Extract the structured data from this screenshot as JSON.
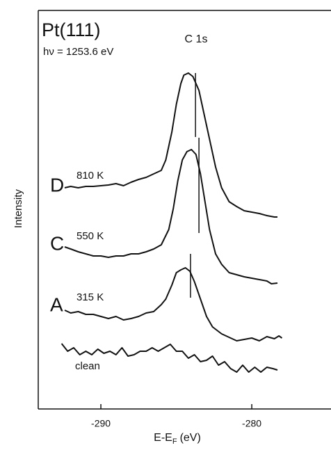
{
  "chart_data": {
    "type": "line",
    "title": "Pt(111)",
    "subtitle": "hν = 1253.6 eV",
    "annotation": "C 1s",
    "ylabel": "Intensity",
    "xlabel": {
      "main": "E-E",
      "sub": "F",
      "unit": "(eV)"
    },
    "xlim": [
      -294.15,
      -274.75
    ],
    "xticks": [
      -290,
      -280
    ],
    "ylim": [
      0,
      573
    ],
    "color": "#111111",
    "series": [
      {
        "name": "810 K",
        "letter": "D",
        "x": [
          -292.4,
          -292,
          -291.5,
          -291,
          -290.5,
          -290,
          -289.5,
          -289,
          -288.5,
          -288,
          -287.5,
          -287,
          -286.5,
          -286,
          -285.7,
          -285.3,
          -285,
          -284.7,
          -284.5,
          -284.2,
          -283.9,
          -283.5,
          -283.2,
          -282.8,
          -282.4,
          -282,
          -281.5,
          -281,
          -280.5,
          -280,
          -279.5,
          -279,
          -278.5,
          -278.3
        ],
        "values": [
          318,
          320,
          318,
          320,
          320,
          321,
          322,
          324,
          321,
          326,
          330,
          333,
          338,
          343,
          358,
          398,
          438,
          468,
          480,
          483,
          478,
          458,
          428,
          388,
          348,
          318,
          298,
          291,
          285,
          283,
          281,
          278,
          276,
          276
        ],
        "peak_x": -283.73,
        "peak_y": [
          483,
          391
        ]
      },
      {
        "name": "550 K",
        "letter": "C",
        "x": [
          -292.4,
          -292,
          -291.5,
          -291,
          -290.5,
          -290,
          -289.5,
          -289,
          -288.5,
          -288,
          -287.5,
          -287,
          -286.5,
          -286,
          -285.5,
          -285.2,
          -284.9,
          -284.6,
          -284.3,
          -284,
          -283.7,
          -283.4,
          -283.1,
          -282.8,
          -282.4,
          -282,
          -281.5,
          -281,
          -280.5,
          -280,
          -279.5,
          -279,
          -278.7,
          -278.3
        ],
        "values": [
          233,
          230,
          226,
          223,
          220,
          220,
          218,
          220,
          220,
          223,
          223,
          226,
          230,
          236,
          258,
          288,
          328,
          358,
          370,
          373,
          366,
          338,
          298,
          258,
          223,
          208,
          196,
          193,
          190,
          188,
          186,
          184,
          180,
          181
        ],
        "peak_x": -283.5,
        "peak_y": [
          390,
          253
        ]
      },
      {
        "name": "315 K",
        "letter": "A",
        "x": [
          -292.4,
          -292,
          -291.5,
          -291,
          -290.5,
          -290,
          -289.5,
          -289,
          -288.5,
          -288,
          -287.5,
          -287,
          -286.5,
          -286,
          -285.7,
          -285.3,
          -285,
          -284.7,
          -284.4,
          -284.1,
          -283.8,
          -283.4,
          -283,
          -282.6,
          -282,
          -281.5,
          -281,
          -280.5,
          -280,
          -279.5,
          -279,
          -278.5,
          -278.2,
          -278
        ],
        "values": [
          142,
          138,
          140,
          136,
          136,
          133,
          130,
          133,
          128,
          130,
          133,
          138,
          140,
          150,
          158,
          178,
          196,
          200,
          203,
          198,
          183,
          158,
          133,
          118,
          108,
          103,
          98,
          100,
          102,
          98,
          104,
          101,
          105,
          102
        ],
        "peak_x": -284.06,
        "peak_y": [
          223,
          160
        ]
      },
      {
        "name": "clean",
        "x": [
          -292.6,
          -292.2,
          -291.8,
          -291.4,
          -291,
          -290.6,
          -290.2,
          -289.8,
          -289.4,
          -289,
          -288.6,
          -288.2,
          -287.8,
          -287.4,
          -287,
          -286.6,
          -286.2,
          -285.8,
          -285.4,
          -285,
          -284.6,
          -284.2,
          -283.8,
          -283.4,
          -283,
          -282.6,
          -282.2,
          -281.8,
          -281.4,
          -281,
          -280.6,
          -280.2,
          -279.8,
          -279.4,
          -279,
          -278.6,
          -278.3
        ],
        "values": [
          94,
          83,
          88,
          78,
          83,
          78,
          86,
          80,
          83,
          78,
          88,
          76,
          78,
          83,
          83,
          88,
          83,
          88,
          93,
          83,
          83,
          73,
          78,
          68,
          70,
          76,
          63,
          68,
          58,
          53,
          63,
          53,
          60,
          53,
          60,
          58,
          56
        ]
      }
    ]
  }
}
